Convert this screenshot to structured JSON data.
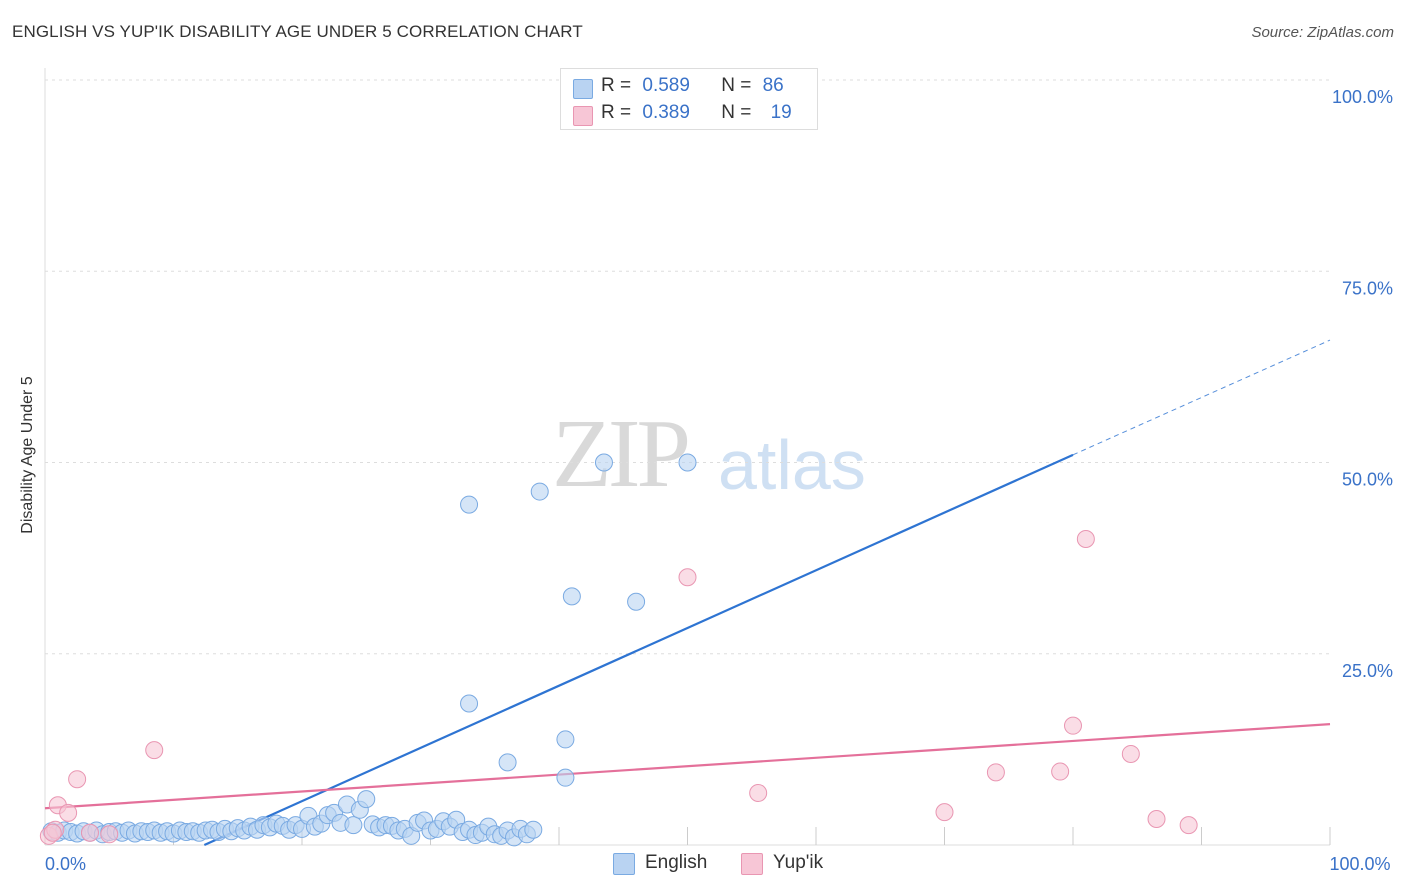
{
  "title": "ENGLISH VS YUP'IK DISABILITY AGE UNDER 5 CORRELATION CHART",
  "source": "Source: ZipAtlas.com",
  "watermark": {
    "zip": "ZIP",
    "atlas": "atlas"
  },
  "legend_top": {
    "rows": [
      {
        "r_label": "R =",
        "r_value": "0.589",
        "n_label": "N =",
        "n_value": "86"
      },
      {
        "r_label": "R =",
        "r_value": "0.389",
        "n_label": "N =",
        "n_value": "19"
      }
    ]
  },
  "colors": {
    "english_fill": "#b9d3f2",
    "english_stroke": "#7aaae2",
    "english_line": "#2e74d2",
    "yupik_fill": "#f7c6d6",
    "yupik_stroke": "#e996b2",
    "yupik_line": "#e4709a",
    "tick_text": "#3a72c8",
    "grid": "#dddddd"
  },
  "chart_data": {
    "type": "scatter",
    "title": "ENGLISH VS YUP'IK DISABILITY AGE UNDER 5 CORRELATION CHART",
    "xlabel": "",
    "ylabel": "Disability Age Under 5",
    "xlim": [
      0,
      100
    ],
    "ylim": [
      0,
      100
    ],
    "x_tick_labels": [
      {
        "value": 0,
        "label": "0.0%"
      },
      {
        "value": 100,
        "label": "100.0%"
      }
    ],
    "y_tick_labels": [
      {
        "value": 25,
        "label": "25.0%"
      },
      {
        "value": 50,
        "label": "50.0%"
      },
      {
        "value": 75,
        "label": "75.0%"
      },
      {
        "value": 100,
        "label": "100.0%"
      }
    ],
    "legend": [
      "English",
      "Yup'ik"
    ],
    "series": [
      {
        "name": "English",
        "R": 0.589,
        "N": 86,
        "trend": {
          "x0": 12.4,
          "y0": 0,
          "x1": 80,
          "y1": 51,
          "dash_to_x": 100,
          "dash_to_y": 66
        },
        "points": [
          [
            0.5,
            1.8
          ],
          [
            1,
            1.6
          ],
          [
            1.5,
            1.9
          ],
          [
            2,
            1.7
          ],
          [
            2.5,
            1.5
          ],
          [
            3,
            1.8
          ],
          [
            3.5,
            1.6
          ],
          [
            4,
            1.9
          ],
          [
            4.5,
            1.4
          ],
          [
            5,
            1.7
          ],
          [
            5.5,
            1.8
          ],
          [
            6,
            1.6
          ],
          [
            6.5,
            1.9
          ],
          [
            7,
            1.5
          ],
          [
            7.5,
            1.8
          ],
          [
            8,
            1.7
          ],
          [
            8.5,
            1.9
          ],
          [
            9,
            1.6
          ],
          [
            9.5,
            1.8
          ],
          [
            10,
            1.5
          ],
          [
            10.5,
            1.9
          ],
          [
            11,
            1.7
          ],
          [
            11.5,
            1.8
          ],
          [
            12,
            1.6
          ],
          [
            12.5,
            1.9
          ],
          [
            13,
            2.0
          ],
          [
            13.5,
            1.7
          ],
          [
            14,
            2.1
          ],
          [
            14.5,
            1.8
          ],
          [
            15,
            2.2
          ],
          [
            15.5,
            1.9
          ],
          [
            16,
            2.4
          ],
          [
            16.5,
            2.0
          ],
          [
            17,
            2.6
          ],
          [
            17.5,
            2.3
          ],
          [
            18,
            2.8
          ],
          [
            18.5,
            2.5
          ],
          [
            19,
            2.0
          ],
          [
            19.5,
            2.6
          ],
          [
            20,
            2.1
          ],
          [
            20.5,
            3.8
          ],
          [
            21,
            2.4
          ],
          [
            21.5,
            2.8
          ],
          [
            22,
            3.9
          ],
          [
            22.5,
            4.2
          ],
          [
            23,
            2.9
          ],
          [
            23.5,
            5.3
          ],
          [
            24,
            2.6
          ],
          [
            24.5,
            4.6
          ],
          [
            25,
            6.0
          ],
          [
            25.5,
            2.7
          ],
          [
            26,
            2.3
          ],
          [
            26.5,
            2.6
          ],
          [
            27,
            2.5
          ],
          [
            27.5,
            1.9
          ],
          [
            28,
            2.1
          ],
          [
            28.5,
            1.2
          ],
          [
            29,
            2.9
          ],
          [
            29.5,
            3.2
          ],
          [
            30,
            1.9
          ],
          [
            30.5,
            2.1
          ],
          [
            31,
            3.1
          ],
          [
            31.5,
            2.4
          ],
          [
            32,
            3.3
          ],
          [
            32.5,
            1.7
          ],
          [
            33,
            2.0
          ],
          [
            33.5,
            1.3
          ],
          [
            34,
            1.6
          ],
          [
            34.5,
            2.4
          ],
          [
            35,
            1.4
          ],
          [
            35.5,
            1.2
          ],
          [
            36,
            1.9
          ],
          [
            36.5,
            1.0
          ],
          [
            37,
            2.1
          ],
          [
            37.5,
            1.4
          ],
          [
            38,
            2.0
          ],
          [
            33,
            44.5
          ],
          [
            38.5,
            46.2
          ],
          [
            43.5,
            50
          ],
          [
            50,
            50
          ],
          [
            41,
            32.5
          ],
          [
            46,
            31.8
          ],
          [
            36,
            10.8
          ],
          [
            33,
            18.5
          ],
          [
            40.5,
            13.8
          ],
          [
            40.5,
            8.8
          ]
        ]
      },
      {
        "name": "Yup'ik",
        "R": 0.389,
        "N": 19,
        "trend": {
          "x0": 0,
          "y0": 4.8,
          "x1": 100,
          "y1": 15.8
        },
        "points": [
          [
            0.3,
            1.2
          ],
          [
            0.8,
            2.0
          ],
          [
            1,
            5.2
          ],
          [
            1.8,
            4.2
          ],
          [
            2.5,
            8.6
          ],
          [
            3.5,
            1.6
          ],
          [
            5,
            1.4
          ],
          [
            8.5,
            12.4
          ],
          [
            50,
            35
          ],
          [
            55.5,
            6.8
          ],
          [
            70,
            4.3
          ],
          [
            74,
            9.5
          ],
          [
            79,
            9.6
          ],
          [
            80,
            15.6
          ],
          [
            81,
            40
          ],
          [
            84.5,
            11.9
          ],
          [
            86.5,
            3.4
          ],
          [
            89,
            2.6
          ],
          [
            0.6,
            1.6
          ]
        ]
      }
    ]
  },
  "bottom_legend": {
    "english": "English",
    "yupik": "Yup'ik"
  }
}
